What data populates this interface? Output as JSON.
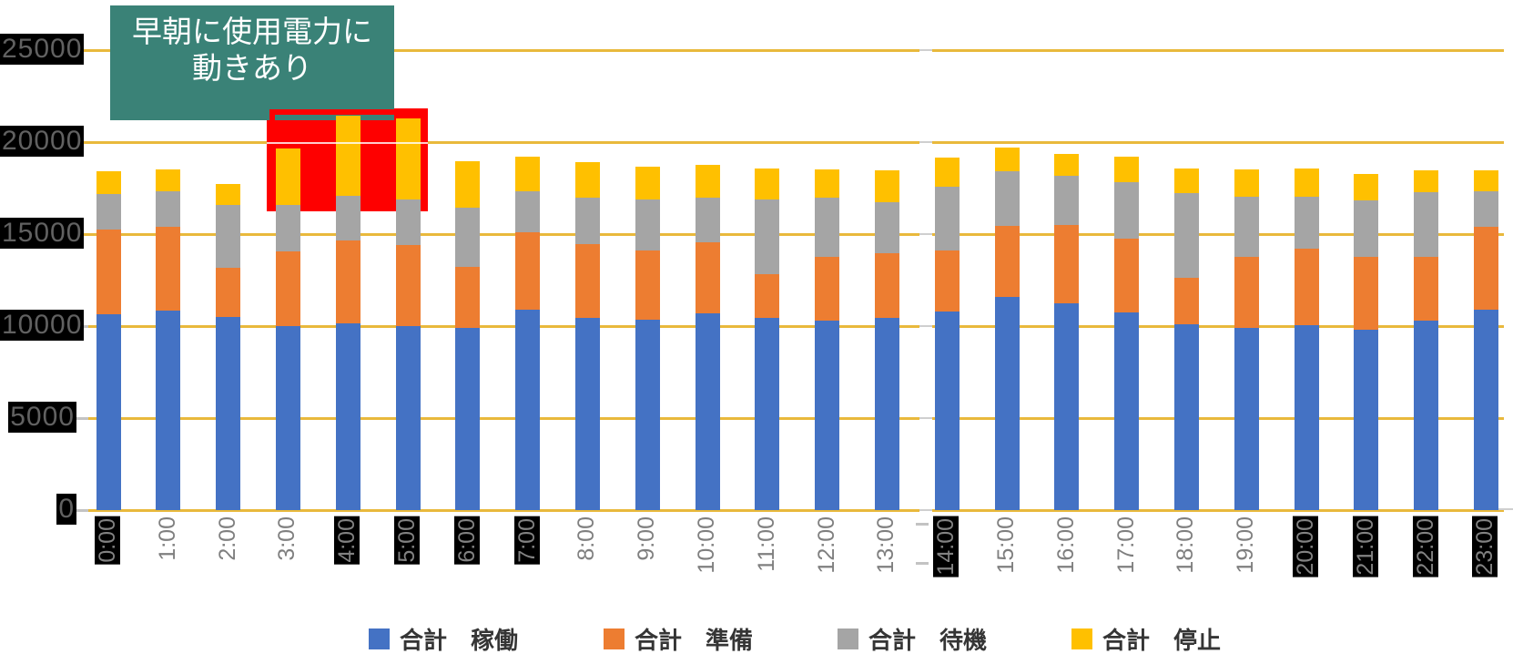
{
  "annotation": {
    "line1": "早朝に使用電力に",
    "line2": "動きあり",
    "bg_color": "#3A8277",
    "text_color": "#FFFFFF"
  },
  "highlight": {
    "color": "#FE0000"
  },
  "colors": {
    "gridline": "#E9B93C",
    "grid_gap": "#CFCFCF",
    "y_label_text": "#616161",
    "y_label_bg": "#000000",
    "x_label_text": "#7F7F7F",
    "legend_text": "#353535",
    "stub_minor": "#C3C3C3"
  },
  "y_axis": {
    "tick_labels": [
      "25000",
      "20000",
      "15000",
      "10000",
      "5000",
      "0"
    ]
  },
  "x_axis": {
    "dark_labels": [
      "0:00",
      "4:00",
      "5:00",
      "6:00",
      "7:00",
      "14:00",
      "20:00",
      "21:00",
      "22:00",
      "23:00"
    ]
  },
  "legend": {
    "items": [
      {
        "label": "合計 稼働",
        "color": "#4472C4"
      },
      {
        "label": "合計 準備",
        "color": "#ED7D31"
      },
      {
        "label": "合計 待機",
        "color": "#A5A5A5"
      },
      {
        "label": "合計 停止",
        "color": "#FFC000"
      }
    ]
  },
  "chart_data": {
    "type": "bar",
    "stacked": true,
    "title": "",
    "xlabel": "",
    "ylabel": "",
    "ylim": [
      0,
      25000
    ],
    "y_ticks": [
      0,
      5000,
      10000,
      15000,
      20000,
      25000
    ],
    "grid": "horizontal",
    "legend_position": "bottom",
    "categories": [
      "0:00",
      "1:00",
      "2:00",
      "3:00",
      "4:00",
      "5:00",
      "6:00",
      "7:00",
      "8:00",
      "9:00",
      "10:00",
      "11:00",
      "12:00",
      "13:00",
      "14:00",
      "15:00",
      "16:00",
      "17:00",
      "18:00",
      "19:00",
      "20:00",
      "21:00",
      "22:00",
      "23:00"
    ],
    "series": [
      {
        "name": "合計 稼働",
        "color": "#4472C4",
        "values": [
          10650,
          10850,
          10500,
          10000,
          10150,
          10000,
          9900,
          10900,
          10450,
          10350,
          10700,
          10450,
          10300,
          10450,
          10800,
          11600,
          11250,
          10750,
          10100,
          9900,
          10050,
          9800,
          10300,
          10900
        ]
      },
      {
        "name": "合計 準備",
        "color": "#ED7D31",
        "values": [
          4600,
          4550,
          2650,
          4050,
          4500,
          4400,
          3300,
          4200,
          4000,
          3750,
          3850,
          2350,
          3450,
          3500,
          3300,
          3850,
          4250,
          4000,
          2500,
          3850,
          4150,
          3950,
          3450,
          4500
        ]
      },
      {
        "name": "合計 待機",
        "color": "#A5A5A5",
        "values": [
          1950,
          1950,
          3450,
          2550,
          2450,
          2500,
          3250,
          2250,
          2550,
          2800,
          2450,
          4100,
          3250,
          2800,
          3450,
          2950,
          2650,
          3050,
          4650,
          3300,
          2850,
          3100,
          3550,
          1950
        ]
      },
      {
        "name": "合計 停止",
        "color": "#FFC000",
        "values": [
          1200,
          1150,
          1100,
          3050,
          4350,
          4400,
          2500,
          1850,
          1900,
          1750,
          1750,
          1650,
          1500,
          1700,
          1600,
          1300,
          1200,
          1400,
          1300,
          1450,
          1500,
          1400,
          1150,
          1100
        ]
      }
    ],
    "annotations": [
      {
        "text": "早朝に使用電力に 動きあり",
        "target_categories": [
          "3:00",
          "4:00",
          "5:00"
        ]
      }
    ]
  }
}
